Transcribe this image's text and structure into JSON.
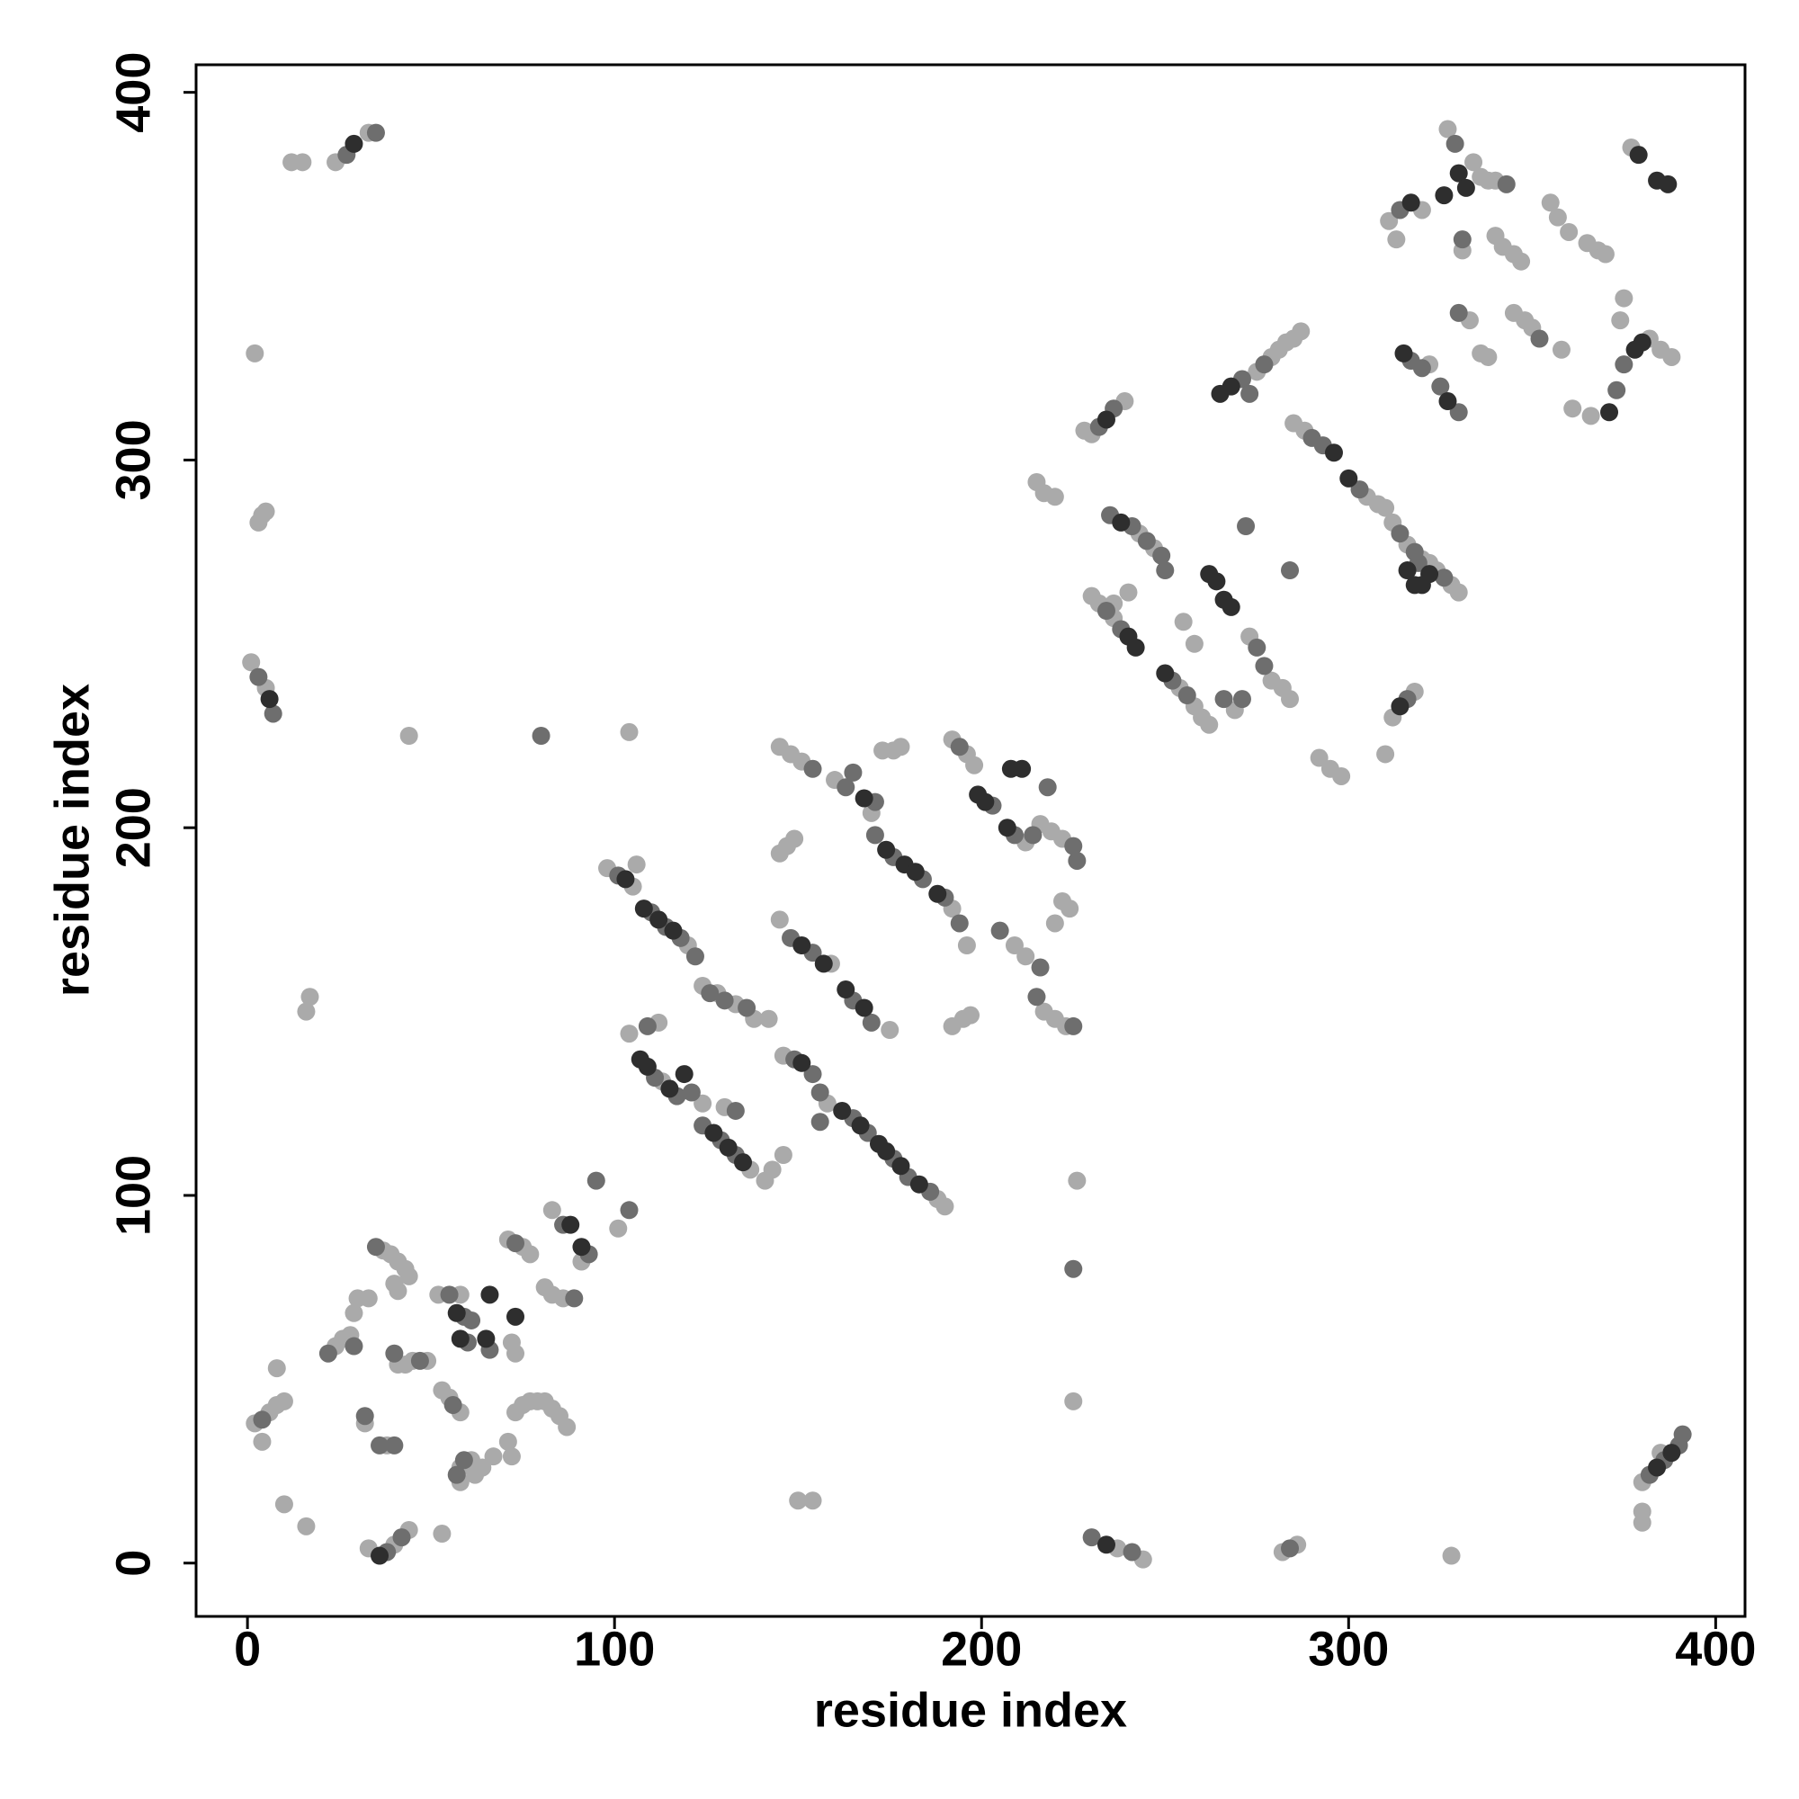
{
  "chart_data": {
    "type": "scatter",
    "xlabel": "residue index",
    "ylabel": "residue index",
    "xlim": [
      -14,
      408
    ],
    "ylim": [
      -14.5,
      407.5
    ],
    "xticks": [
      0,
      100,
      200,
      300,
      400
    ],
    "yticks": [
      0,
      100,
      200,
      300,
      400
    ],
    "grid": false,
    "series": [
      {
        "color": "#aaaaaa",
        "x": [
          12,
          15,
          24,
          33,
          2,
          3,
          4,
          5,
          1,
          5,
          44,
          104,
          17,
          16,
          2,
          6,
          8,
          10,
          4,
          8,
          10,
          16,
          24,
          26,
          28,
          29,
          30,
          33,
          32,
          37,
          39,
          41,
          43,
          44,
          40,
          41,
          41,
          43,
          45,
          49,
          38,
          40,
          44,
          33,
          53,
          53,
          55,
          58,
          52,
          58,
          72,
          73,
          58,
          61,
          62,
          64,
          58,
          67,
          71,
          72,
          71,
          75,
          77,
          83,
          91,
          73,
          75,
          77,
          79,
          81,
          83,
          85,
          87,
          81,
          83,
          86,
          101,
          98,
          105,
          106,
          120,
          124,
          128,
          133,
          138,
          142,
          104,
          112,
          113,
          124,
          130,
          137,
          141,
          143,
          146,
          145,
          159,
          146,
          158,
          145,
          147,
          149,
          145,
          148,
          151,
          160,
          173,
          176,
          178,
          170,
          175,
          188,
          190,
          192,
          196,
          192,
          196,
          198,
          192,
          195,
          197,
          212,
          209,
          212,
          216,
          219,
          222,
          217,
          220,
          223,
          222,
          220,
          224,
          226,
          225,
          228,
          230,
          239,
          220,
          215,
          217,
          230,
          232,
          236,
          243,
          247,
          236,
          240,
          254,
          258,
          260,
          262,
          255,
          258,
          269,
          275,
          279,
          281,
          283,
          285,
          287,
          273,
          279,
          282,
          284,
          285,
          288,
          305,
          308,
          310,
          312,
          316,
          320,
          322,
          324,
          328,
          330,
          298,
          295,
          292,
          310,
          312,
          318,
          311,
          320,
          313,
          322,
          327,
          334,
          336,
          338,
          340,
          331,
          333,
          336,
          338,
          340,
          342,
          345,
          347,
          345,
          348,
          350,
          355,
          357,
          360,
          358,
          361,
          365,
          368,
          370,
          366,
          382,
          385,
          388,
          374,
          375,
          377,
          380,
          380,
          380,
          385,
          237,
          244,
          282,
          286,
          328,
          150,
          154
        ],
        "values": [
          381,
          381,
          381,
          389,
          329,
          283,
          285,
          286,
          245,
          238,
          225,
          226,
          154,
          150,
          38,
          41,
          43,
          44,
          33,
          53,
          16,
          10,
          59,
          61,
          62,
          68,
          72,
          72,
          38,
          85,
          84,
          82,
          80,
          78,
          76,
          74,
          54,
          54,
          55,
          55,
          32,
          5,
          9,
          4,
          8,
          47,
          45,
          41,
          73,
          73,
          60,
          57,
          26,
          28,
          24,
          26,
          22,
          29,
          33,
          29,
          88,
          86,
          84,
          96,
          82,
          41,
          43,
          44,
          44,
          44,
          42,
          40,
          37,
          75,
          73,
          72,
          91,
          189,
          184,
          190,
          168,
          157,
          155,
          152,
          148,
          148,
          144,
          147,
          131,
          125,
          124,
          107,
          104,
          107,
          111,
          175,
          163,
          138,
          125,
          193,
          195,
          197,
          222,
          220,
          218,
          213,
          221,
          221,
          222,
          204,
          145,
          99,
          97,
          178,
          168,
          224,
          220,
          217,
          146,
          148,
          149,
          196,
          168,
          165,
          201,
          199,
          197,
          150,
          148,
          146,
          180,
          174,
          178,
          104,
          44,
          308,
          307,
          316,
          290,
          294,
          291,
          263,
          261,
          257,
          280,
          276,
          261,
          264,
          238,
          233,
          230,
          228,
          256,
          250,
          232,
          324,
          328,
          330,
          332,
          333,
          335,
          252,
          240,
          238,
          235,
          310,
          308,
          290,
          288,
          287,
          283,
          277,
          273,
          272,
          270,
          266,
          264,
          214,
          216,
          219,
          220,
          230,
          237,
          365,
          368,
          360,
          326,
          390,
          381,
          377,
          376,
          376,
          357,
          338,
          329,
          328,
          361,
          358,
          356,
          354,
          340,
          338,
          336,
          370,
          366,
          362,
          330,
          314,
          359,
          357,
          356,
          312,
          333,
          330,
          328,
          338,
          344,
          385,
          22,
          14,
          11,
          30,
          4,
          1,
          3,
          5,
          2,
          17,
          17
        ]
      },
      {
        "color": "#6e6e6e",
        "x": [
          27,
          35,
          3,
          7,
          80,
          4,
          22,
          29,
          32,
          35,
          40,
          47,
          36,
          40,
          38,
          42,
          56,
          55,
          59,
          61,
          60,
          66,
          57,
          59,
          73,
          86,
          93,
          89,
          95,
          104,
          101,
          110,
          114,
          118,
          122,
          126,
          130,
          136,
          109,
          111,
          117,
          121,
          124,
          129,
          133,
          133,
          148,
          154,
          149,
          154,
          156,
          156,
          154,
          163,
          165,
          171,
          165,
          170,
          165,
          169,
          176,
          180,
          186,
          171,
          176,
          184,
          190,
          194,
          194,
          203,
          209,
          214,
          205,
          216,
          218,
          225,
          226,
          215,
          225,
          225,
          232,
          236,
          234,
          238,
          235,
          241,
          245,
          249,
          250,
          252,
          256,
          266,
          271,
          271,
          273,
          277,
          272,
          275,
          277,
          284,
          290,
          293,
          303,
          314,
          318,
          326,
          319,
          316,
          314,
          317,
          320,
          325,
          330,
          329,
          343,
          331,
          330,
          352,
          373,
          375,
          382,
          386,
          390,
          391,
          230,
          241,
          284
        ],
        "values": [
          383,
          389,
          241,
          231,
          225,
          39,
          57,
          59,
          40,
          86,
          57,
          55,
          32,
          32,
          3,
          7,
          43,
          73,
          67,
          66,
          60,
          58,
          24,
          28,
          87,
          92,
          84,
          72,
          104,
          96,
          187,
          177,
          173,
          170,
          165,
          155,
          153,
          151,
          146,
          132,
          127,
          128,
          119,
          115,
          111,
          123,
          170,
          166,
          137,
          133,
          128,
          120,
          216,
          211,
          215,
          207,
          153,
          147,
          121,
          117,
          110,
          105,
          101,
          198,
          192,
          186,
          181,
          174,
          222,
          206,
          198,
          198,
          172,
          162,
          211,
          195,
          191,
          154,
          146,
          80,
          309,
          314,
          259,
          254,
          285,
          282,
          278,
          274,
          270,
          240,
          236,
          235,
          235,
          322,
          318,
          326,
          282,
          249,
          244,
          270,
          306,
          304,
          292,
          280,
          275,
          268,
          272,
          235,
          368,
          327,
          325,
          320,
          313,
          386,
          375,
          360,
          340,
          333,
          319,
          326,
          24,
          28,
          32,
          35,
          7,
          3,
          4
        ]
      },
      {
        "color": "#2e2e2e",
        "x": [
          29,
          6,
          36,
          57,
          58,
          65,
          66,
          73,
          88,
          91,
          103,
          108,
          112,
          116,
          107,
          109,
          115,
          119,
          127,
          131,
          135,
          151,
          157,
          151,
          168,
          163,
          168,
          162,
          167,
          172,
          174,
          178,
          183,
          174,
          179,
          182,
          188,
          199,
          201,
          207,
          208,
          211,
          234,
          240,
          242,
          238,
          250,
          262,
          264,
          266,
          268,
          265,
          268,
          296,
          300,
          316,
          318,
          320,
          322,
          314,
          317,
          315,
          327,
          330,
          332,
          326,
          371,
          378,
          380,
          379,
          384,
          387,
          384,
          388,
          234
        ],
        "values": [
          386,
          235,
          2,
          68,
          61,
          61,
          73,
          67,
          92,
          86,
          186,
          178,
          175,
          172,
          137,
          135,
          129,
          133,
          117,
          113,
          109,
          168,
          163,
          136,
          208,
          156,
          151,
          123,
          119,
          114,
          112,
          108,
          103,
          194,
          190,
          188,
          182,
          209,
          207,
          200,
          216,
          216,
          311,
          252,
          249,
          283,
          242,
          269,
          267,
          262,
          260,
          318,
          320,
          302,
          295,
          270,
          266,
          266,
          269,
          233,
          370,
          329,
          316,
          378,
          374,
          372,
          313,
          330,
          332,
          383,
          376,
          375,
          26,
          30,
          5
        ]
      }
    ]
  }
}
